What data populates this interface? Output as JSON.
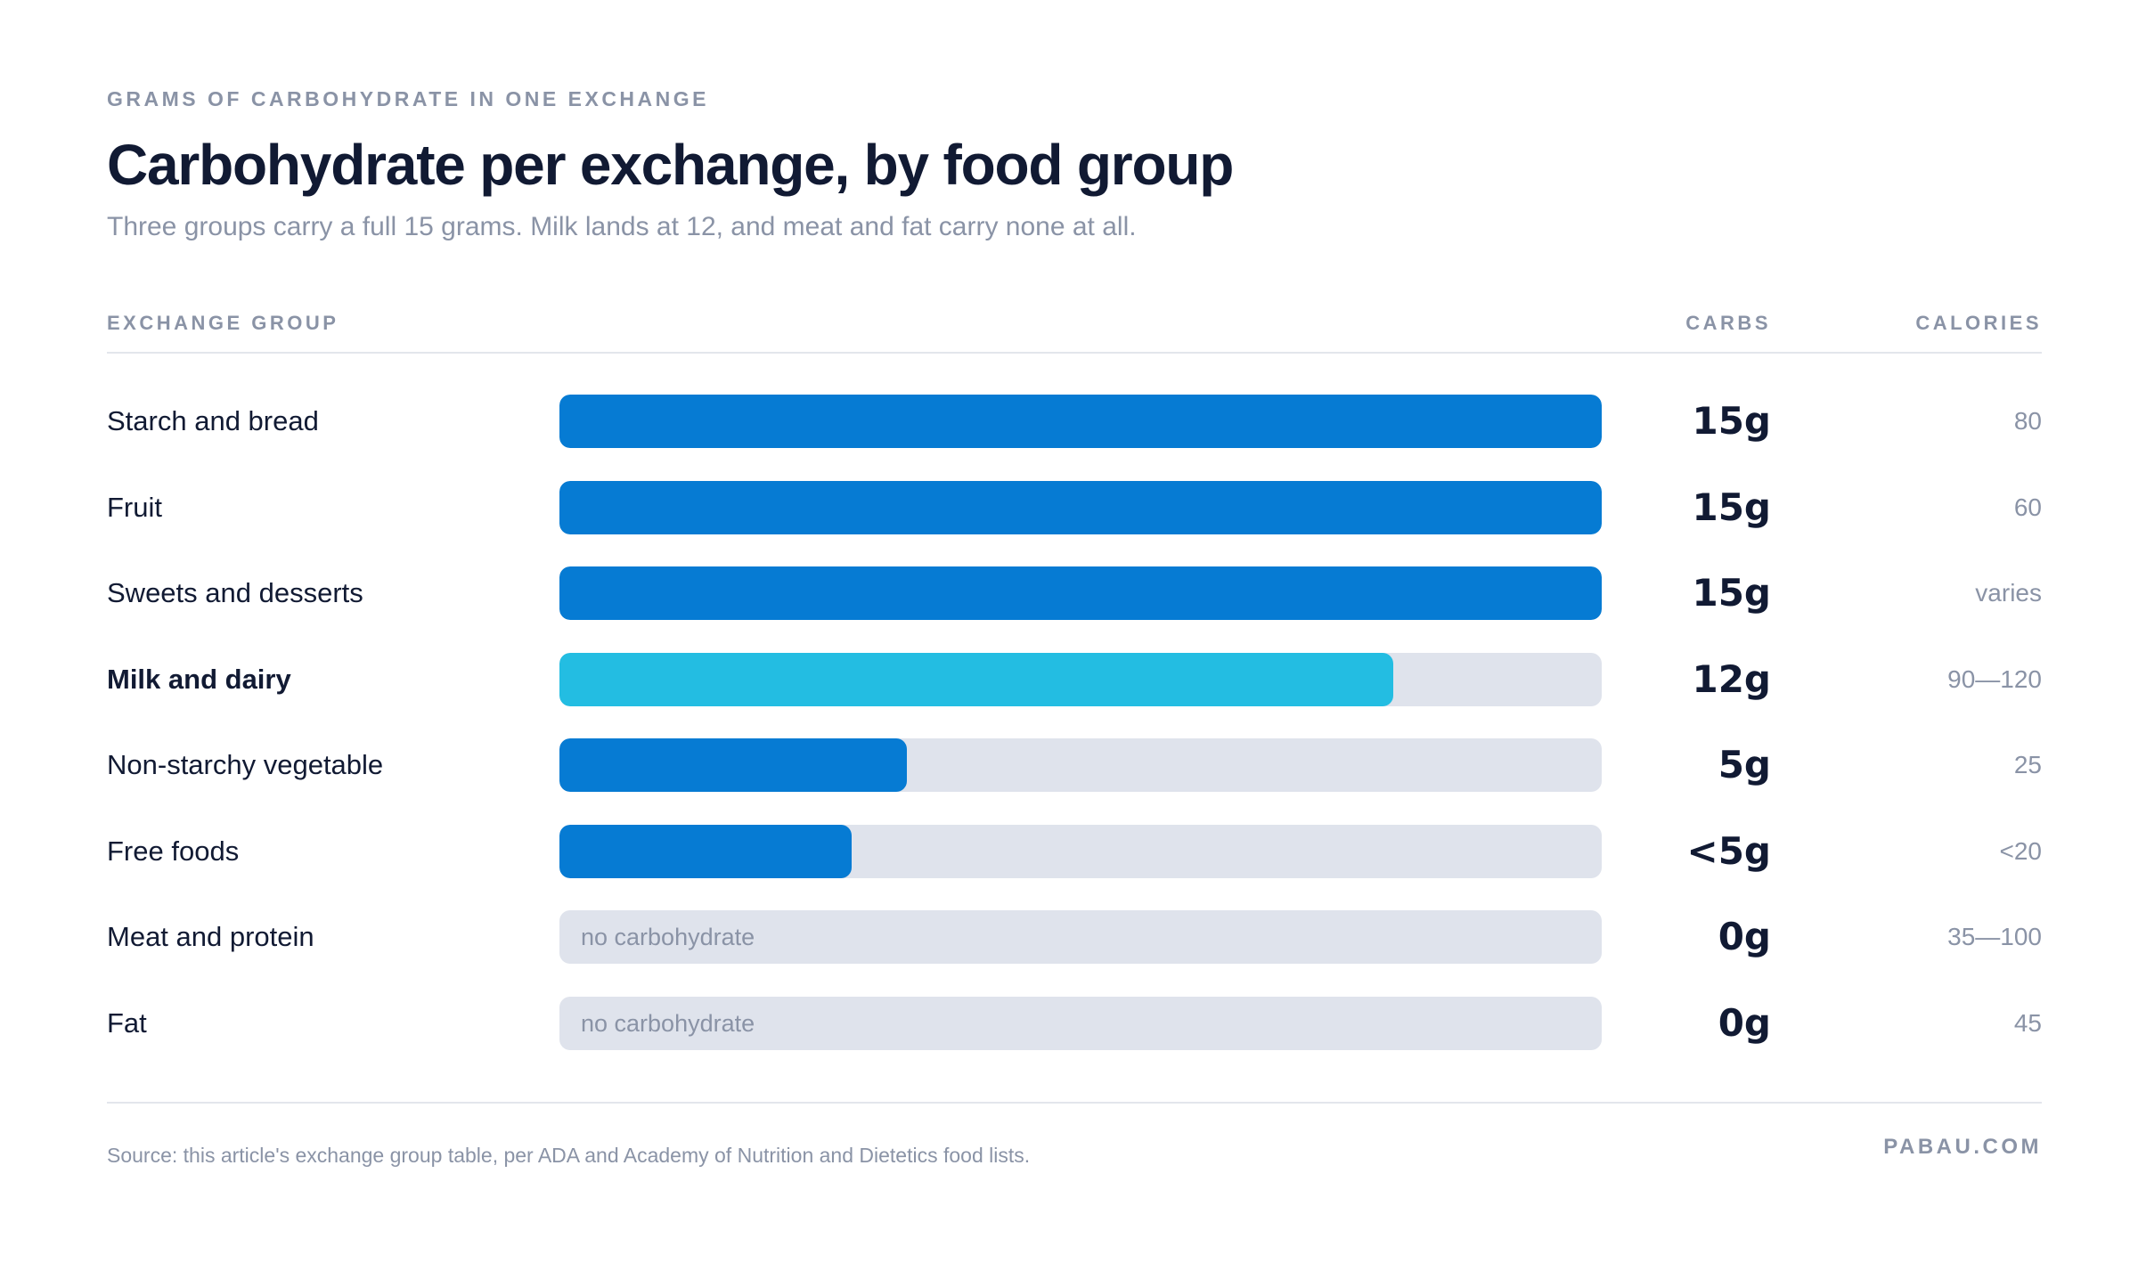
{
  "header": {
    "eyebrow": "GRAMS OF CARBOHYDRATE IN ONE EXCHANGE",
    "title": "Carbohydrate per exchange, by food group",
    "subtitle": "Three groups carry a full 15 grams. Milk lands at 12, and meat and fat carry none at all."
  },
  "columns": {
    "group": "EXCHANGE GROUP",
    "carbs": "CARBS",
    "calories": "CALORIES"
  },
  "colors": {
    "primary_bar": "#067bd3",
    "highlight_bar": "#23bde2",
    "track": "#dfe3ec"
  },
  "chart_data": {
    "type": "bar",
    "orientation": "horizontal",
    "title": "Carbohydrate per exchange, by food group",
    "xlim": [
      0,
      15
    ],
    "rows": [
      {
        "label": "Starch and bread",
        "value": 15,
        "carbs_label": "15g",
        "calories": "80",
        "highlight": false,
        "note": ""
      },
      {
        "label": "Fruit",
        "value": 15,
        "carbs_label": "15g",
        "calories": "60",
        "highlight": false,
        "note": ""
      },
      {
        "label": "Sweets and desserts",
        "value": 15,
        "carbs_label": "15g",
        "calories": "varies",
        "highlight": false,
        "note": ""
      },
      {
        "label": "Milk and dairy",
        "value": 12,
        "carbs_label": "12g",
        "calories": "90—120",
        "highlight": true,
        "note": ""
      },
      {
        "label": "Non-starchy vegetable",
        "value": 5,
        "carbs_label": "5g",
        "calories": "25",
        "highlight": false,
        "note": ""
      },
      {
        "label": "Free foods",
        "value": 4.2,
        "carbs_label": "<5g",
        "calories": "<20",
        "highlight": false,
        "note": ""
      },
      {
        "label": "Meat and protein",
        "value": 0,
        "carbs_label": "0g",
        "calories": "35—100",
        "highlight": false,
        "note": "no carbohydrate"
      },
      {
        "label": "Fat",
        "value": 0,
        "carbs_label": "0g",
        "calories": "45",
        "highlight": false,
        "note": "no carbohydrate"
      }
    ]
  },
  "footer": {
    "source": "Source: this article's exchange group table, per ADA and Academy of Nutrition and Dietetics food lists.",
    "brand": "PABAU.COM"
  }
}
